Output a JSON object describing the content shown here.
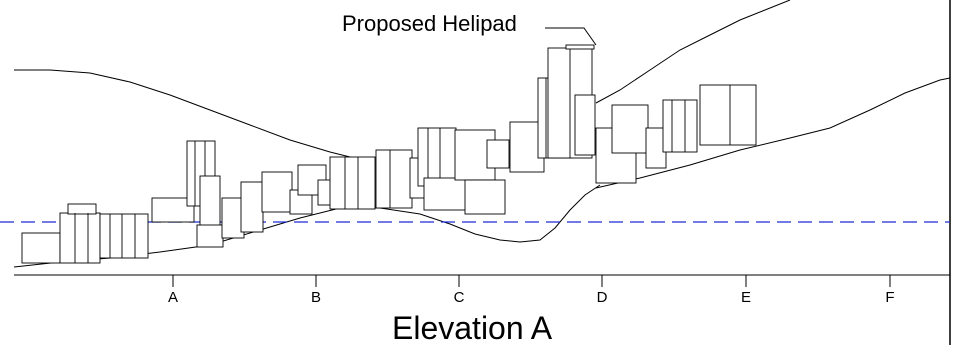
{
  "title": "Elevation A",
  "callout": "Proposed Helipad",
  "axis_labels": [
    "A",
    "B",
    "C",
    "D",
    "E",
    "F"
  ],
  "colors": {
    "line": "#000000",
    "reference_line": "#1f2bd6",
    "background": "#ffffff"
  }
}
